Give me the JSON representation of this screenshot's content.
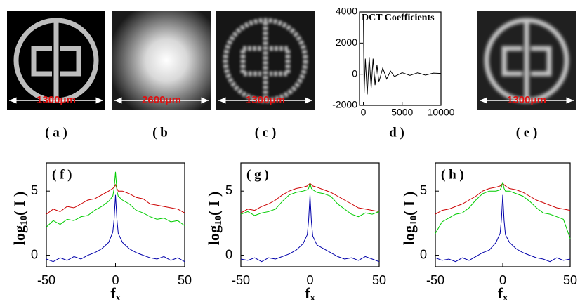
{
  "images": [
    {
      "scale": "1300μm",
      "caption": "( a )"
    },
    {
      "scale": "2600μm",
      "caption": "( b"
    },
    {
      "scale": "1300μm",
      "caption": "( c )"
    },
    {
      "scale": "1300μm",
      "caption": "( e )"
    }
  ],
  "chart_data": [
    {
      "type": "line",
      "title": "DCT Coefficients",
      "caption": "d )",
      "x": [
        0,
        100,
        250,
        500,
        750,
        1000,
        1250,
        1500,
        1750,
        2000,
        2500,
        3000,
        3500,
        4000,
        5000,
        6000,
        7000,
        8000,
        9000,
        10000
      ],
      "series": [
        {
          "color": "#000000",
          "values": [
            3800,
            -1200,
            1000,
            -1300,
            1100,
            -900,
            1000,
            -700,
            600,
            -500,
            400,
            -300,
            200,
            -150,
            100,
            -80,
            90,
            -60,
            70,
            50
          ]
        }
      ],
      "xlim": [
        -500,
        10000
      ],
      "xticks": [
        0,
        5000,
        10000
      ],
      "ylim": [
        -2000,
        4000
      ],
      "yticks": [
        -2000,
        0,
        2000,
        4000
      ]
    },
    {
      "type": "line",
      "caption": "( f )",
      "xlabel": [
        "f",
        "x"
      ],
      "ylabel": [
        "log",
        "10",
        "( I )"
      ],
      "x": [
        -50,
        -45,
        -40,
        -35,
        -30,
        -25,
        -20,
        -15,
        -10,
        -5,
        -2,
        -1,
        0,
        1,
        2,
        5,
        10,
        15,
        20,
        25,
        30,
        35,
        40,
        45,
        50
      ],
      "series": [
        {
          "color": "#cc0000",
          "values": [
            3.2,
            3.6,
            3.4,
            3.8,
            3.7,
            4.0,
            4.3,
            4.4,
            4.7,
            5.0,
            5.2,
            5.3,
            5.5,
            5.2,
            5.0,
            5.0,
            4.8,
            4.5,
            4.4,
            4.0,
            3.9,
            3.8,
            3.7,
            3.6,
            3.3
          ]
        },
        {
          "color": "#00cc00",
          "values": [
            2.2,
            2.7,
            2.4,
            2.8,
            2.7,
            3.0,
            3.1,
            3.5,
            3.8,
            4.2,
            4.6,
            5.2,
            6.5,
            5.0,
            4.6,
            4.3,
            4.0,
            3.5,
            3.3,
            3.0,
            2.8,
            2.9,
            2.6,
            2.7,
            2.3
          ]
        },
        {
          "color": "#0000aa",
          "values": [
            -0.3,
            -0.5,
            -0.2,
            -0.4,
            -0.1,
            -0.3,
            0,
            0.2,
            0.5,
            1.0,
            1.8,
            2.8,
            4.7,
            2.8,
            1.7,
            1.0,
            0.5,
            0.2,
            0,
            -0.2,
            -0.3,
            -0.1,
            -0.4,
            -0.2,
            -0.5
          ]
        }
      ],
      "xlim": [
        -50,
        50
      ],
      "xticks": [
        -50,
        0,
        50
      ],
      "ylim": [
        -0.9,
        7.2
      ],
      "yticks": [
        0,
        5
      ]
    },
    {
      "type": "line",
      "caption": "( g )",
      "xlabel": [
        "f",
        "x"
      ],
      "ylabel": [
        "log",
        "10",
        "( I )"
      ],
      "x": [
        -50,
        -45,
        -40,
        -35,
        -30,
        -25,
        -20,
        -15,
        -10,
        -5,
        -2,
        -1,
        0,
        1,
        2,
        5,
        10,
        15,
        20,
        25,
        30,
        35,
        40,
        45,
        50
      ],
      "series": [
        {
          "color": "#cc0000",
          "values": [
            3.3,
            3.6,
            3.5,
            3.8,
            4.0,
            4.3,
            4.7,
            5.0,
            5.2,
            5.3,
            5.4,
            5.5,
            5.6,
            5.5,
            5.4,
            5.3,
            5.1,
            4.9,
            4.6,
            4.3,
            4.0,
            3.7,
            3.6,
            3.5,
            3.4
          ]
        },
        {
          "color": "#00cc00",
          "values": [
            3.2,
            3.4,
            3.1,
            3.3,
            3.4,
            3.6,
            4.2,
            4.7,
            4.9,
            5.0,
            5.1,
            5.2,
            5.6,
            5.2,
            5.1,
            4.9,
            4.8,
            4.6,
            4.0,
            3.6,
            3.2,
            3.0,
            3.3,
            3.2,
            3.4
          ]
        },
        {
          "color": "#0000aa",
          "values": [
            -0.3,
            -0.4,
            -0.2,
            -0.5,
            -0.2,
            -0.3,
            -0.1,
            0.1,
            0.4,
            0.9,
            1.6,
            2.7,
            4.7,
            2.6,
            1.5,
            0.8,
            0.5,
            0.2,
            -0.1,
            -0.3,
            -0.2,
            -0.4,
            -0.1,
            -0.3,
            -0.5
          ]
        }
      ],
      "xlim": [
        -50,
        50
      ],
      "xticks": [
        -50,
        0,
        50
      ],
      "ylim": [
        -0.9,
        7.2
      ],
      "yticks": [
        0,
        5
      ]
    },
    {
      "type": "line",
      "caption": "( h )",
      "xlabel": [
        "f",
        "x"
      ],
      "ylabel": [
        "log",
        "10",
        "( I )"
      ],
      "x": [
        -50,
        -45,
        -40,
        -35,
        -30,
        -25,
        -20,
        -15,
        -10,
        -5,
        -2,
        -1,
        0,
        1,
        2,
        5,
        10,
        15,
        20,
        25,
        30,
        35,
        40,
        45,
        50
      ],
      "series": [
        {
          "color": "#cc0000",
          "values": [
            3.2,
            3.5,
            3.6,
            3.8,
            4.0,
            4.3,
            4.6,
            5.0,
            5.2,
            5.3,
            5.4,
            5.5,
            5.6,
            5.5,
            5.4,
            5.2,
            5.1,
            4.9,
            4.6,
            4.3,
            4.1,
            3.9,
            3.7,
            3.6,
            3.5
          ]
        },
        {
          "color": "#00cc00",
          "values": [
            1.7,
            2.6,
            2.9,
            3.2,
            3.3,
            3.7,
            4.3,
            4.8,
            5.0,
            5.0,
            5.1,
            5.3,
            5.7,
            5.2,
            5.0,
            5.0,
            4.8,
            4.6,
            4.2,
            3.7,
            3.3,
            3.2,
            3.0,
            2.8,
            1.3
          ]
        },
        {
          "color": "#0000aa",
          "values": [
            -0.2,
            -0.4,
            -0.3,
            -0.5,
            -0.2,
            -0.4,
            -0.1,
            0.2,
            0.4,
            1.0,
            1.7,
            2.8,
            4.7,
            2.7,
            1.6,
            1.0,
            0.5,
            0.2,
            0,
            -0.2,
            -0.3,
            -0.5,
            -0.2,
            -0.4,
            -0.3
          ]
        }
      ],
      "xlim": [
        -50,
        50
      ],
      "xticks": [
        -50,
        0,
        50
      ],
      "ylim": [
        -0.9,
        7.2
      ],
      "yticks": [
        0,
        5
      ]
    }
  ]
}
